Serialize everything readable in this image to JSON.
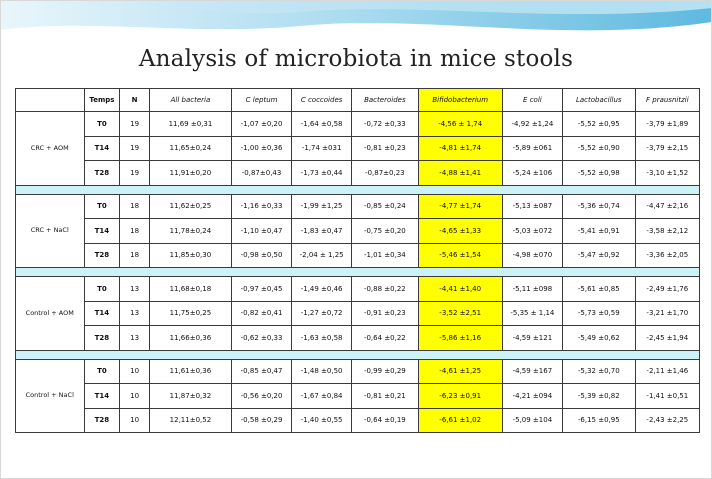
{
  "slide": {
    "title": "Analysis of microbiota in mice stools",
    "colors": {
      "accent_wave": "#7fc8e8",
      "highlight": "#ffff00",
      "separator": "#ccf2f7"
    }
  },
  "table": {
    "headers": [
      "",
      "Temps",
      "N",
      "All bacteria",
      "C leptum",
      "C coccoides",
      "Bacteroides",
      "Bifidobacterium",
      "E coli",
      "Lactobacillus",
      "F prausnitzii"
    ],
    "groups": [
      {
        "label": "CRC + AOM",
        "rows": [
          [
            "T0",
            "19",
            "11,69 ±0,31",
            "-1,07 ±0,20",
            "-1,64 ±0,58",
            "-0,72 ±0,33",
            "-4,56 ± 1,74",
            "-4,92 ±1,24",
            "-5,52 ±0,95",
            "-3,79 ±1,89"
          ],
          [
            "T14",
            "19",
            "11,65±0,24",
            "-1,00 ±0,36",
            "-1,74 ±031",
            "-0,81 ±0,23",
            "-4,81 ±1,74",
            "-5,89 ±061",
            "-5,52 ±0,90",
            "-3,79 ±2,15"
          ],
          [
            "T28",
            "19",
            "11,91±0,20",
            "-0,87±0,43",
            "-1,73 ±0,44",
            "-0,87±0,23",
            "-4,88 ±1,41",
            "-5,24 ±106",
            "-5,52 ±0,98",
            "-3,10 ±1,52"
          ]
        ]
      },
      {
        "label": "CRC + NaCl",
        "rows": [
          [
            "T0",
            "18",
            "11,62±0,25",
            "-1,16 ±0,33",
            "-1,99 ±1,25",
            "-0,85 ±0,24",
            "-4,77 ±1,74",
            "-5,13 ±087",
            "-5,36 ±0,74",
            "-4,47 ±2,16"
          ],
          [
            "T14",
            "18",
            "11,78±0,24",
            "-1,10 ±0,47",
            "-1,83 ±0,47",
            "-0,75 ±0,20",
            "-4,65 ±1,33",
            "-5,03 ±072",
            "-5,41 ±0,91",
            "-3,58 ±2,12"
          ],
          [
            "T28",
            "18",
            "11,85±0,30",
            "-0,98 ±0,50",
            "-2,04 ± 1,25",
            "-1,01 ±0,34",
            "-5,46 ±1,54",
            "-4,98 ±070",
            "-5,47 ±0,92",
            "-3,36 ±2,05"
          ]
        ]
      },
      {
        "label": "Control + AOM",
        "rows": [
          [
            "T0",
            "13",
            "11,68±0,18",
            "-0,97 ±0,45",
            "-1,49 ±0,46",
            "-0,88 ±0,22",
            "-4,41 ±1,40",
            "-5,11 ±098",
            "-5,61 ±0,85",
            "-2,49 ±1,76"
          ],
          [
            "T14",
            "13",
            "11,75±0,25",
            "-0,82 ±0,41",
            "-1,27 ±0,72",
            "-0,91 ±0,23",
            "-3,52 ±2,51",
            "-5,35 ± 1,14",
            "-5,73 ±0,59",
            "-3,21 ±1,70"
          ],
          [
            "T28",
            "13",
            "11,66±0,36",
            "-0,62 ±0,33",
            "-1,63 ±0,58",
            "-0,64 ±0,22",
            "-5,86 ±1,16",
            "-4,59 ±121",
            "-5,49 ±0,62",
            "-2,45 ±1,94"
          ]
        ]
      },
      {
        "label": "Control + NaCl",
        "rows": [
          [
            "T0",
            "10",
            "11,61±0,36",
            "-0,85 ±0,47",
            "-1,48 ±0,50",
            "-0,99 ±0,29",
            "-4,61 ±1,25",
            "-4,59 ±167",
            "-5,32 ±0,70",
            "-2,11 ±1,46"
          ],
          [
            "T14",
            "10",
            "11,87±0,32",
            "-0,56 ±0,20",
            "-1,67 ±0,84",
            "-0,81 ±0,21",
            "-6,23 ±0,91",
            "-4,21 ±094",
            "-5,39 ±0,82",
            "-1,41 ±0,51"
          ],
          [
            "T28",
            "10",
            "12,11±0,52",
            "-0,58 ±0,29",
            "-1,40 ±0,55",
            "-0,64 ±0,19",
            "-6,61 ±1,02",
            "-5,09 ±104",
            "-6,15 ±0,95",
            "-2,43 ±2,25"
          ]
        ]
      }
    ]
  }
}
